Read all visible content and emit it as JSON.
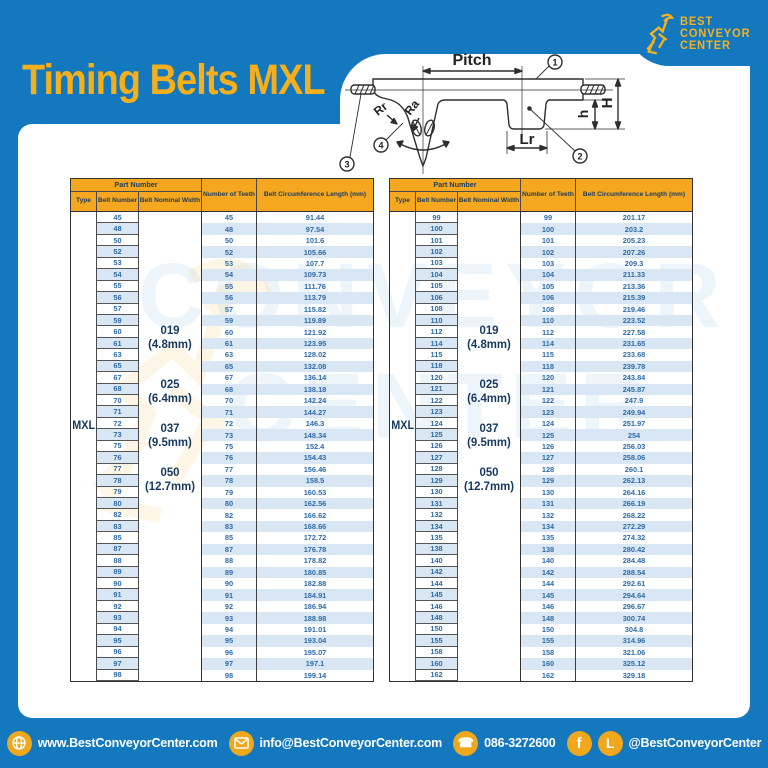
{
  "page": {
    "title": "Timing Belts MXL"
  },
  "logo": {
    "line1": "BEST",
    "line2": "CONVEYOR",
    "line3": "CENTER"
  },
  "diagram": {
    "pitch": "Pitch",
    "lr": "Lr",
    "height_total": "H",
    "height_tooth": "h",
    "rr": "Rr",
    "ra": "Ra",
    "callout_1": "1",
    "callout_2": "2",
    "callout_3": "3",
    "callout_4": "4"
  },
  "headers": {
    "part_number": "Part Number",
    "type": "Type",
    "belt_number": "Belt Number",
    "belt_nominal_width": "Belt Nominal Width",
    "number_of_teeth": "Number of Teeth",
    "circumference": "Belt Circumference Length (mm)"
  },
  "type_label": "MXL",
  "width_labels": [
    {
      "code": "019",
      "mm": "(4.8mm)"
    },
    {
      "code": "025",
      "mm": "(6.4mm)"
    },
    {
      "code": "037",
      "mm": "(9.5mm)"
    },
    {
      "code": "050",
      "mm": "(12.7mm)"
    }
  ],
  "tables": [
    {
      "rows": [
        [
          "45",
          "91.44"
        ],
        [
          "48",
          "97.54"
        ],
        [
          "50",
          "101.6"
        ],
        [
          "52",
          "105.66"
        ],
        [
          "53",
          "107.7"
        ],
        [
          "54",
          "109.73"
        ],
        [
          "55",
          "111.76"
        ],
        [
          "56",
          "113.79"
        ],
        [
          "57",
          "115.82"
        ],
        [
          "59",
          "119.89"
        ],
        [
          "60",
          "121.92"
        ],
        [
          "61",
          "123.95"
        ],
        [
          "63",
          "128.02"
        ],
        [
          "65",
          "132.08"
        ],
        [
          "67",
          "136.14"
        ],
        [
          "68",
          "138.18"
        ],
        [
          "70",
          "142.24"
        ],
        [
          "71",
          "144.27"
        ],
        [
          "72",
          "146.3"
        ],
        [
          "73",
          "148.34"
        ],
        [
          "75",
          "152.4"
        ],
        [
          "76",
          "154.43"
        ],
        [
          "77",
          "156.46"
        ],
        [
          "78",
          "158.5"
        ],
        [
          "79",
          "160.53"
        ],
        [
          "80",
          "162.56"
        ],
        [
          "82",
          "166.62"
        ],
        [
          "83",
          "168.66"
        ],
        [
          "85",
          "172.72"
        ],
        [
          "87",
          "176.78"
        ],
        [
          "88",
          "178.82"
        ],
        [
          "89",
          "180.85"
        ],
        [
          "90",
          "182.88"
        ],
        [
          "91",
          "184.91"
        ],
        [
          "92",
          "186.94"
        ],
        [
          "93",
          "188.98"
        ],
        [
          "94",
          "191.01"
        ],
        [
          "95",
          "193.04"
        ],
        [
          "96",
          "195.07"
        ],
        [
          "97",
          "197.1"
        ],
        [
          "98",
          "199.14"
        ]
      ]
    },
    {
      "rows": [
        [
          "99",
          "201.17"
        ],
        [
          "100",
          "203.2"
        ],
        [
          "101",
          "205.23"
        ],
        [
          "102",
          "207.26"
        ],
        [
          "103",
          "209.3"
        ],
        [
          "104",
          "211.33"
        ],
        [
          "105",
          "213.36"
        ],
        [
          "106",
          "215.39"
        ],
        [
          "108",
          "219.46"
        ],
        [
          "110",
          "223.52"
        ],
        [
          "112",
          "227.58"
        ],
        [
          "114",
          "231.65"
        ],
        [
          "115",
          "233.68"
        ],
        [
          "118",
          "239.78"
        ],
        [
          "120",
          "243.84"
        ],
        [
          "121",
          "245.87"
        ],
        [
          "122",
          "247.9"
        ],
        [
          "123",
          "249.94"
        ],
        [
          "124",
          "251.97"
        ],
        [
          "125",
          "254"
        ],
        [
          "126",
          "256.03"
        ],
        [
          "127",
          "258.06"
        ],
        [
          "128",
          "260.1"
        ],
        [
          "129",
          "262.13"
        ],
        [
          "130",
          "264.16"
        ],
        [
          "131",
          "266.19"
        ],
        [
          "132",
          "268.22"
        ],
        [
          "134",
          "272.29"
        ],
        [
          "135",
          "274.32"
        ],
        [
          "138",
          "280.42"
        ],
        [
          "140",
          "284.48"
        ],
        [
          "142",
          "288.54"
        ],
        [
          "144",
          "292.61"
        ],
        [
          "145",
          "294.64"
        ],
        [
          "146",
          "296.67"
        ],
        [
          "148",
          "300.74"
        ],
        [
          "150",
          "304.8"
        ],
        [
          "155",
          "314.96"
        ],
        [
          "158",
          "321.06"
        ],
        [
          "160",
          "325.12"
        ],
        [
          "162",
          "329.18"
        ]
      ]
    }
  ],
  "watermark": {
    "text1": "CONVEYOR",
    "text2": "CENTER"
  },
  "footer": {
    "website": "www.BestConveyorCenter.com",
    "email": "info@BestConveyorCenter.com",
    "phone": "086-3272600",
    "social": "@BestConveyorCenter"
  },
  "colors": {
    "blue": "#1478BE",
    "header_orange": "#F5A71F",
    "logo_yellow": "#F5B120",
    "title_yellow": "#F5AE1C",
    "stripe_blue": "#D9E6F3",
    "navy_text": "#16395E",
    "number_blue": "#2F6BA6",
    "icon_yellow": "#EFA71C"
  }
}
